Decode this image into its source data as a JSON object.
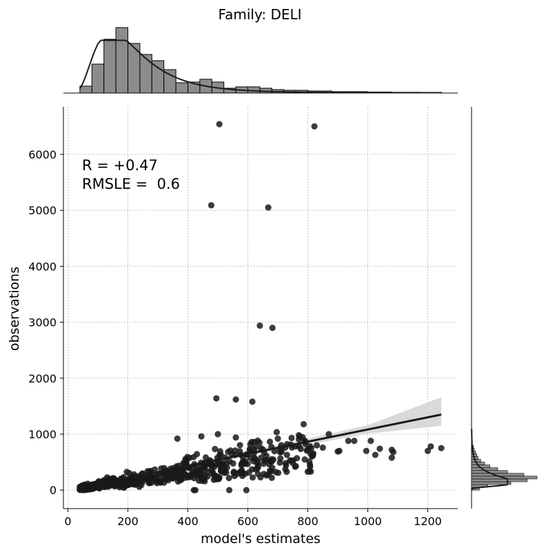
{
  "chart_data": {
    "type": "scatter",
    "title": "Family: DELI",
    "xlabel": "model's estimates",
    "ylabel": "observations",
    "xlim": [
      -15,
      1300
    ],
    "ylim": [
      -330,
      6850
    ],
    "xticks": [
      0,
      200,
      400,
      600,
      800,
      1000,
      1200
    ],
    "yticks": [
      0,
      1000,
      2000,
      3000,
      4000,
      5000,
      6000
    ],
    "grid": true,
    "annotations": [
      "R = +0.47",
      "RMSLE =  0.6"
    ],
    "marker_color": "#1a1a1a",
    "outliers": [
      {
        "x": 505,
        "y": 6540
      },
      {
        "x": 822,
        "y": 6500
      },
      {
        "x": 478,
        "y": 5090
      },
      {
        "x": 668,
        "y": 5050
      },
      {
        "x": 640,
        "y": 2940
      },
      {
        "x": 682,
        "y": 2900
      },
      {
        "x": 495,
        "y": 1640
      },
      {
        "x": 560,
        "y": 1620
      },
      {
        "x": 615,
        "y": 1580
      },
      {
        "x": 870,
        "y": 1000
      },
      {
        "x": 935,
        "y": 880
      },
      {
        "x": 955,
        "y": 880
      },
      {
        "x": 1010,
        "y": 880
      },
      {
        "x": 1040,
        "y": 740
      },
      {
        "x": 1080,
        "y": 720
      },
      {
        "x": 1085,
        "y": 680
      },
      {
        "x": 1200,
        "y": 700
      },
      {
        "x": 1210,
        "y": 780
      },
      {
        "x": 1245,
        "y": 750
      },
      {
        "x": 995,
        "y": 700
      },
      {
        "x": 1025,
        "y": 630
      },
      {
        "x": 1080,
        "y": 580
      },
      {
        "x": 900,
        "y": 690
      },
      {
        "x": 905,
        "y": 700
      },
      {
        "x": 420,
        "y": 0
      },
      {
        "x": 425,
        "y": 0
      },
      {
        "x": 538,
        "y": 0
      },
      {
        "x": 595,
        "y": 0
      },
      {
        "x": 680,
        "y": 220
      },
      {
        "x": 365,
        "y": 920
      },
      {
        "x": 445,
        "y": 960
      },
      {
        "x": 500,
        "y": 1000
      },
      {
        "x": 560,
        "y": 940
      },
      {
        "x": 620,
        "y": 860
      },
      {
        "x": 700,
        "y": 920
      },
      {
        "x": 770,
        "y": 980
      },
      {
        "x": 790,
        "y": 880
      },
      {
        "x": 830,
        "y": 800
      },
      {
        "x": 850,
        "y": 760
      }
    ],
    "bulk_cloud": {
      "x_range": [
        40,
        820
      ],
      "y_ratio_range": [
        0.55,
        1.6
      ]
    },
    "regression_line": {
      "x": [
        40,
        1245
      ],
      "y": [
        40,
        1350
      ]
    },
    "confidence_band": {
      "x": [
        40,
        400,
        600,
        800,
        1000,
        1245
      ],
      "lower": [
        25,
        380,
        610,
        810,
        1010,
        1150
      ],
      "upper": [
        55,
        440,
        700,
        920,
        1160,
        1660
      ]
    },
    "marginal_x_histogram": {
      "bins": [
        40,
        80,
        120,
        160,
        200,
        240,
        280,
        320,
        360,
        400,
        440,
        480,
        520,
        560,
        600,
        640,
        680,
        720,
        760,
        800,
        840,
        880,
        920,
        960,
        1000,
        1040,
        1080,
        1120,
        1160,
        1200,
        1245
      ],
      "counts": [
        10,
        42,
        78,
        95,
        72,
        56,
        47,
        34,
        15,
        16,
        20,
        16,
        7,
        9,
        9,
        7,
        5,
        4,
        4,
        3,
        3,
        2,
        2,
        2,
        1.5,
        1.5,
        1,
        1,
        1,
        1
      ],
      "kde_peak_x": 195
    },
    "marginal_y_histogram": {
      "bins": [
        0,
        50,
        100,
        150,
        200,
        250,
        300,
        350,
        400,
        450,
        500,
        550,
        600,
        650,
        700,
        750,
        800
      ],
      "counts": [
        12,
        25,
        60,
        85,
        100,
        80,
        55,
        40,
        28,
        20,
        14,
        10,
        8,
        6,
        4,
        3
      ],
      "kde_peak_y": 200
    }
  }
}
